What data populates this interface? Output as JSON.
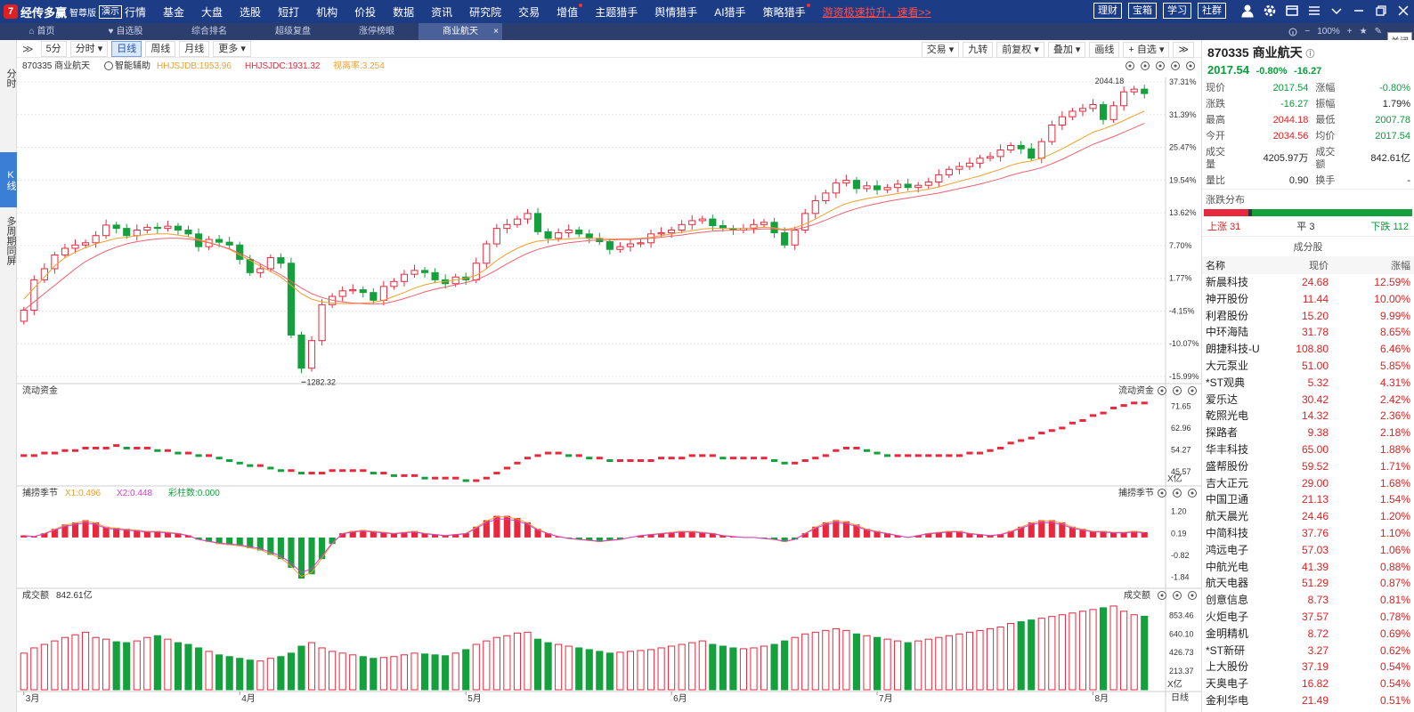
{
  "app": {
    "logo_mark": "7",
    "name": "经传多赢",
    "edition": "智尊版",
    "demo_badge": "演示"
  },
  "menu": {
    "items": [
      {
        "label": "行情",
        "dot": false
      },
      {
        "label": "基金",
        "dot": false
      },
      {
        "label": "大盘",
        "dot": false
      },
      {
        "label": "选股",
        "dot": false
      },
      {
        "label": "短打",
        "dot": false
      },
      {
        "label": "机构",
        "dot": false
      },
      {
        "label": "价投",
        "dot": false
      },
      {
        "label": "数据",
        "dot": false
      },
      {
        "label": "资讯",
        "dot": false
      },
      {
        "label": "研究院",
        "dot": false
      },
      {
        "label": "交易",
        "dot": false
      },
      {
        "label": "增值",
        "dot": true
      },
      {
        "label": "主题猎手",
        "dot": false
      },
      {
        "label": "舆情猎手",
        "dot": false
      },
      {
        "label": "AI猎手",
        "dot": false
      },
      {
        "label": "策略猎手",
        "dot": true
      }
    ],
    "promo": "游资极速拉升，速看>>"
  },
  "topright": {
    "pills": [
      "理财",
      "宝箱",
      "学习",
      "社群"
    ]
  },
  "tabs": [
    {
      "label": "首页",
      "active": false,
      "icon": "home-icon"
    },
    {
      "label": "自选股",
      "active": false,
      "icon": "heart-icon"
    },
    {
      "label": "综合排名",
      "active": false
    },
    {
      "label": "超级复盘",
      "active": false
    },
    {
      "label": "涨停榜眼",
      "active": false
    },
    {
      "label": "商业航天",
      "active": true,
      "close": "×"
    }
  ],
  "zoom": {
    "minus": "−",
    "value": "100%",
    "plus": "+"
  },
  "close_tip": "关闭",
  "leftbar": [
    {
      "label": "分时",
      "active": false
    },
    {
      "label": "K线",
      "active": true
    },
    {
      "label": "多周期同屏",
      "active": false
    }
  ],
  "toolbar": {
    "expand": "≫",
    "buttons": [
      {
        "label": "5分",
        "active": false
      },
      {
        "label": "分时 ▾",
        "active": false
      },
      {
        "label": "日线",
        "active": true
      },
      {
        "label": "周线",
        "active": false
      },
      {
        "label": "月线",
        "active": false
      },
      {
        "label": "更多 ▾",
        "active": false
      }
    ],
    "right_buttons": [
      "交易 ▾",
      "九转",
      "前复权 ▾",
      "叠加 ▾",
      "画线",
      "+ 自选 ▾",
      "≫"
    ]
  },
  "main_panel": {
    "title": "870335 商业航天",
    "assist": "智能辅助",
    "ind1": "HHJSJDB:1953.96",
    "ind2": "HHJSJDC:1931.32",
    "ind3": "视离率:3.254",
    "y_labels": [
      "37.31%",
      "31.39%",
      "25.47%",
      "19.54%",
      "13.62%",
      "7.70%",
      "1.77%",
      "-4.15%",
      "-10.07%",
      "-15.99%"
    ],
    "high_label": "2044.18",
    "low_label": "1282.32"
  },
  "flow_panel": {
    "title": "流动资金",
    "title_right": "流动资金",
    "y_labels": [
      "71.65",
      "62.96",
      "54.27",
      "45.57"
    ],
    "unit": "X亿"
  },
  "season_panel": {
    "title": "捕捞季节",
    "x1": "X1:0.496",
    "x2": "X2:0.448",
    "caizhu": "彩柱数:0.000",
    "title_right": "捕捞季节",
    "y_labels": [
      "1.20",
      "0.19",
      "-0.82",
      "-1.84"
    ]
  },
  "vol_panel": {
    "title": "成交额",
    "value": "842.61亿",
    "title_right": "成交额",
    "y_labels": [
      "853.46",
      "640.10",
      "426.73",
      "213.37"
    ],
    "unit": "X亿"
  },
  "x_axis": {
    "labels": [
      "3月",
      "4月",
      "5月",
      "6月",
      "7月",
      "8月"
    ],
    "period": "日线"
  },
  "colors": {
    "up": "#e8283c",
    "down": "#14a03c",
    "ma_short": "#f0a030",
    "ma_long": "#f06070",
    "accent": "#1d3c86"
  },
  "quote": {
    "code_name": "870335 商业航天",
    "price": "2017.54",
    "pct": "-0.80%",
    "chg": "-16.27",
    "rows": [
      [
        {
          "l": "现价",
          "v": "2017.54",
          "c": "green"
        },
        {
          "l": "涨幅",
          "v": "-0.80%",
          "c": "green"
        }
      ],
      [
        {
          "l": "涨跌",
          "v": "-16.27",
          "c": "green"
        },
        {
          "l": "振幅",
          "v": "1.79%",
          "c": "dim"
        }
      ],
      [
        {
          "l": "最高",
          "v": "2044.18",
          "c": "red"
        },
        {
          "l": "最低",
          "v": "2007.78",
          "c": "green"
        }
      ],
      [
        {
          "l": "今开",
          "v": "2034.56",
          "c": "red"
        },
        {
          "l": "均价",
          "v": "2017.54",
          "c": "green"
        }
      ],
      [
        {
          "l": "成交量",
          "v": "4205.97万",
          "c": "dim"
        },
        {
          "l": "成交额",
          "v": "842.61亿",
          "c": "dim"
        }
      ],
      [
        {
          "l": "量比",
          "v": "0.90",
          "c": "dim"
        },
        {
          "l": "换手",
          "v": "-",
          "c": "dim"
        }
      ]
    ]
  },
  "dist": {
    "title": "涨跌分布",
    "up_label": "上涨",
    "up": 31,
    "flat_label": "平",
    "flat": 3,
    "down_label": "下跌",
    "down": 112
  },
  "components": {
    "title": "成分股",
    "headers": [
      "名称",
      "现价",
      "涨幅"
    ],
    "rows": [
      [
        "新晨科技",
        "24.68",
        "12.59%"
      ],
      [
        "神开股份",
        "11.44",
        "10.00%"
      ],
      [
        "利君股份",
        "15.20",
        "9.99%"
      ],
      [
        "中环海陆",
        "31.78",
        "8.65%"
      ],
      [
        "朗捷科技-U",
        "108.80",
        "6.46%"
      ],
      [
        "大元泵业",
        "51.00",
        "5.85%"
      ],
      [
        "*ST观典",
        "5.32",
        "4.31%"
      ],
      [
        "爱乐达",
        "30.42",
        "2.42%"
      ],
      [
        "乾照光电",
        "14.32",
        "2.36%"
      ],
      [
        "探路者",
        "9.38",
        "2.18%"
      ],
      [
        "华丰科技",
        "65.00",
        "1.88%"
      ],
      [
        "盛帮股份",
        "59.52",
        "1.71%"
      ],
      [
        "吉大正元",
        "29.00",
        "1.68%"
      ],
      [
        "中国卫通",
        "21.13",
        "1.54%"
      ],
      [
        "航天晨光",
        "24.46",
        "1.20%"
      ],
      [
        "中简科技",
        "37.76",
        "1.10%"
      ],
      [
        "鸿远电子",
        "57.03",
        "1.06%"
      ],
      [
        "中航光电",
        "41.39",
        "0.88%"
      ],
      [
        "航天电器",
        "51.29",
        "0.87%"
      ],
      [
        "创意信息",
        "8.73",
        "0.81%"
      ],
      [
        "火炬电子",
        "37.57",
        "0.78%"
      ],
      [
        "金明精机",
        "8.72",
        "0.69%"
      ],
      [
        "*ST新研",
        "3.27",
        "0.62%"
      ],
      [
        "上大股份",
        "37.19",
        "0.54%"
      ],
      [
        "天奥电子",
        "16.82",
        "0.54%"
      ],
      [
        "金利华电",
        "21.49",
        "0.51%"
      ]
    ]
  },
  "chart_data": {
    "type": "candlestick",
    "x_months": [
      "3月",
      "4月",
      "5月",
      "6月",
      "7月",
      "8月"
    ],
    "y_range_pct": [
      -15.99,
      37.31
    ],
    "close_pct": [
      -4.0,
      1.5,
      3.5,
      6.0,
      7.2,
      7.8,
      8.2,
      9.5,
      11.4,
      10.8,
      9.5,
      10.5,
      11.0,
      10.8,
      11.2,
      10.5,
      9.8,
      7.5,
      8.8,
      8.3,
      7.8,
      5.2,
      2.8,
      3.5,
      5.5,
      4.5,
      -8.5,
      -14.5,
      -9.5,
      -3.0,
      -1.5,
      -0.5,
      -0.3,
      -0.8,
      -2.2,
      0.3,
      1.2,
      2.5,
      3.2,
      2.8,
      1.5,
      0.8,
      2.0,
      1.5,
      4.5,
      8.0,
      10.8,
      11.5,
      12.5,
      13.5,
      10.2,
      9.0,
      10.0,
      10.5,
      9.8,
      9.0,
      8.4,
      7.0,
      7.5,
      8.0,
      8.2,
      9.8,
      10.0,
      10.5,
      11.5,
      12.2,
      12.5,
      11.3,
      10.8,
      10.5,
      10.8,
      11.5,
      11.9,
      10.0,
      7.8,
      10.5,
      13.5,
      15.8,
      17.2,
      19.0,
      19.5,
      18.0,
      18.5,
      17.8,
      18.2,
      18.8,
      18.2,
      18.6,
      19.2,
      20.5,
      21.5,
      22.0,
      22.6,
      23.5,
      23.8,
      25.0,
      25.8,
      25.2,
      23.5,
      26.5,
      29.5,
      31.0,
      32.0,
      32.5,
      33.2,
      30.5,
      33.0,
      35.5,
      36.0,
      35.2
    ],
    "ma_short_pct": [
      -2.0,
      0.0,
      2.0,
      4.0,
      5.5,
      6.5,
      7.3,
      8.0,
      8.5,
      9.0,
      9.2,
      9.5,
      9.7,
      9.8,
      9.8,
      9.6,
      9.3,
      8.8,
      8.3,
      7.7,
      7.0,
      6.0,
      5.0,
      4.0,
      3.0,
      2.0,
      0.5,
      -1.0,
      -2.0,
      -2.5,
      -2.7,
      -2.8,
      -2.8,
      -2.7,
      -2.6,
      -2.2,
      -1.5,
      -0.8,
      0.0,
      0.6,
      1.0,
      1.2,
      1.5,
      1.8,
      2.3,
      3.5,
      5.0,
      6.2,
      7.2,
      8.0,
      8.5,
      8.7,
      8.8,
      8.9,
      9.0,
      9.0,
      9.0,
      8.9,
      8.9,
      8.9,
      9.0,
      9.2,
      9.5,
      9.8,
      10.1,
      10.4,
      10.7,
      10.8,
      10.8,
      10.8,
      10.8,
      10.9,
      11.0,
      10.9,
      10.6,
      10.9,
      11.6,
      12.5,
      13.5,
      14.5,
      15.3,
      15.8,
      16.2,
      16.5,
      16.8,
      17.1,
      17.4,
      17.6,
      17.9,
      18.3,
      18.8,
      19.3,
      19.8,
      20.3,
      20.9,
      21.5,
      22.2,
      22.7,
      23.0,
      23.5,
      24.3,
      25.2,
      26.2,
      27.2,
      28.2,
      28.8,
      29.5,
      30.3,
      31.2,
      32.0
    ],
    "ma_long_pct": [
      -4.0,
      -2.5,
      -1.0,
      0.5,
      2.0,
      3.5,
      4.8,
      5.8,
      6.7,
      7.4,
      8.0,
      8.4,
      8.7,
      8.9,
      9.0,
      9.0,
      8.9,
      8.6,
      8.2,
      7.7,
      7.1,
      6.3,
      5.4,
      4.4,
      3.4,
      2.4,
      1.2,
      0.0,
      -1.0,
      -1.7,
      -2.2,
      -2.5,
      -2.7,
      -2.8,
      -2.9,
      -2.8,
      -2.4,
      -1.9,
      -1.3,
      -0.7,
      -0.2,
      0.2,
      0.6,
      1.0,
      1.5,
      2.3,
      3.3,
      4.4,
      5.4,
      6.3,
      7.0,
      7.5,
      7.9,
      8.2,
      8.4,
      8.6,
      8.7,
      8.7,
      8.8,
      8.8,
      8.9,
      9.0,
      9.2,
      9.4,
      9.6,
      9.9,
      10.1,
      10.3,
      10.4,
      10.5,
      10.5,
      10.6,
      10.7,
      10.7,
      10.5,
      10.6,
      11.0,
      11.6,
      12.3,
      13.1,
      13.8,
      14.4,
      14.9,
      15.3,
      15.7,
      16.0,
      16.3,
      16.6,
      16.9,
      17.2,
      17.6,
      18.0,
      18.4,
      18.8,
      19.3,
      19.8,
      20.4,
      20.9,
      21.3,
      21.8,
      22.5,
      23.3,
      24.2,
      25.1,
      26.0,
      26.7,
      27.4,
      28.2,
      29.0,
      29.8
    ],
    "flow_values": [
      52,
      52,
      53,
      53,
      54,
      54,
      55,
      55,
      55,
      56,
      55,
      55,
      55,
      54,
      54,
      53,
      53,
      52,
      52,
      51,
      50,
      49,
      48,
      48,
      47,
      46,
      46,
      45,
      45,
      45,
      46,
      46,
      46,
      46,
      45,
      45,
      44,
      44,
      44,
      43,
      43,
      43,
      43,
      42,
      42,
      43,
      45,
      47,
      49,
      51,
      52,
      53,
      53,
      52,
      52,
      51,
      51,
      50,
      50,
      50,
      50,
      50,
      51,
      51,
      51,
      52,
      52,
      52,
      51,
      51,
      51,
      51,
      51,
      50,
      49,
      49,
      50,
      51,
      52,
      54,
      55,
      55,
      54,
      53,
      52,
      52,
      52,
      52,
      52,
      52,
      52,
      52,
      53,
      53,
      54,
      55,
      57,
      58,
      59,
      61,
      62,
      63,
      65,
      66,
      68,
      69,
      71,
      72,
      73,
      73
    ],
    "season_values": [
      0.1,
      0.05,
      0.2,
      0.4,
      0.6,
      0.7,
      0.8,
      0.7,
      0.5,
      0.45,
      0.4,
      0.35,
      0.3,
      0.3,
      0.25,
      0.2,
      0.1,
      -0.1,
      -0.2,
      -0.3,
      -0.35,
      -0.4,
      -0.5,
      -0.6,
      -0.8,
      -1.0,
      -1.4,
      -1.9,
      -1.7,
      -1.0,
      -0.3,
      0.2,
      0.3,
      0.35,
      0.3,
      0.25,
      0.2,
      0.25,
      0.3,
      0.2,
      0.15,
      0.1,
      0.15,
      0.2,
      0.5,
      0.8,
      1.0,
      1.0,
      0.9,
      0.7,
      0.4,
      0.2,
      0.05,
      -0.05,
      -0.1,
      -0.15,
      -0.2,
      -0.15,
      -0.1,
      0.0,
      0.1,
      0.15,
      0.2,
      0.25,
      0.3,
      0.3,
      0.25,
      0.2,
      0.1,
      0.05,
      0.0,
      0.0,
      -0.05,
      -0.1,
      -0.2,
      -0.1,
      0.2,
      0.5,
      0.7,
      0.8,
      0.75,
      0.6,
      0.4,
      0.3,
      0.2,
      0.1,
      0.0,
      0.1,
      0.2,
      0.25,
      0.3,
      0.3,
      0.2,
      0.15,
      0.1,
      0.15,
      0.3,
      0.5,
      0.7,
      0.8,
      0.8,
      0.7,
      0.5,
      0.4,
      0.3,
      0.3,
      0.25,
      0.25,
      0.3,
      0.25
    ],
    "vol_values": [
      420,
      480,
      520,
      560,
      600,
      630,
      660,
      600,
      580,
      550,
      540,
      560,
      600,
      620,
      580,
      540,
      520,
      480,
      440,
      400,
      380,
      360,
      340,
      330,
      360,
      380,
      420,
      500,
      540,
      480,
      440,
      420,
      400,
      380,
      360,
      370,
      380,
      400,
      420,
      410,
      400,
      390,
      420,
      460,
      520,
      560,
      600,
      620,
      650,
      660,
      580,
      540,
      520,
      500,
      480,
      460,
      440,
      420,
      430,
      440,
      450,
      460,
      480,
      500,
      520,
      540,
      560,
      520,
      500,
      480,
      470,
      480,
      500,
      520,
      560,
      600,
      640,
      660,
      680,
      700,
      680,
      640,
      620,
      600,
      580,
      560,
      540,
      560,
      580,
      600,
      620,
      640,
      660,
      680,
      700,
      720,
      760,
      780,
      800,
      820,
      840,
      860,
      880,
      900,
      920,
      940,
      960,
      900,
      860,
      843
    ],
    "vol_ylim": [
      0,
      1000
    ]
  }
}
